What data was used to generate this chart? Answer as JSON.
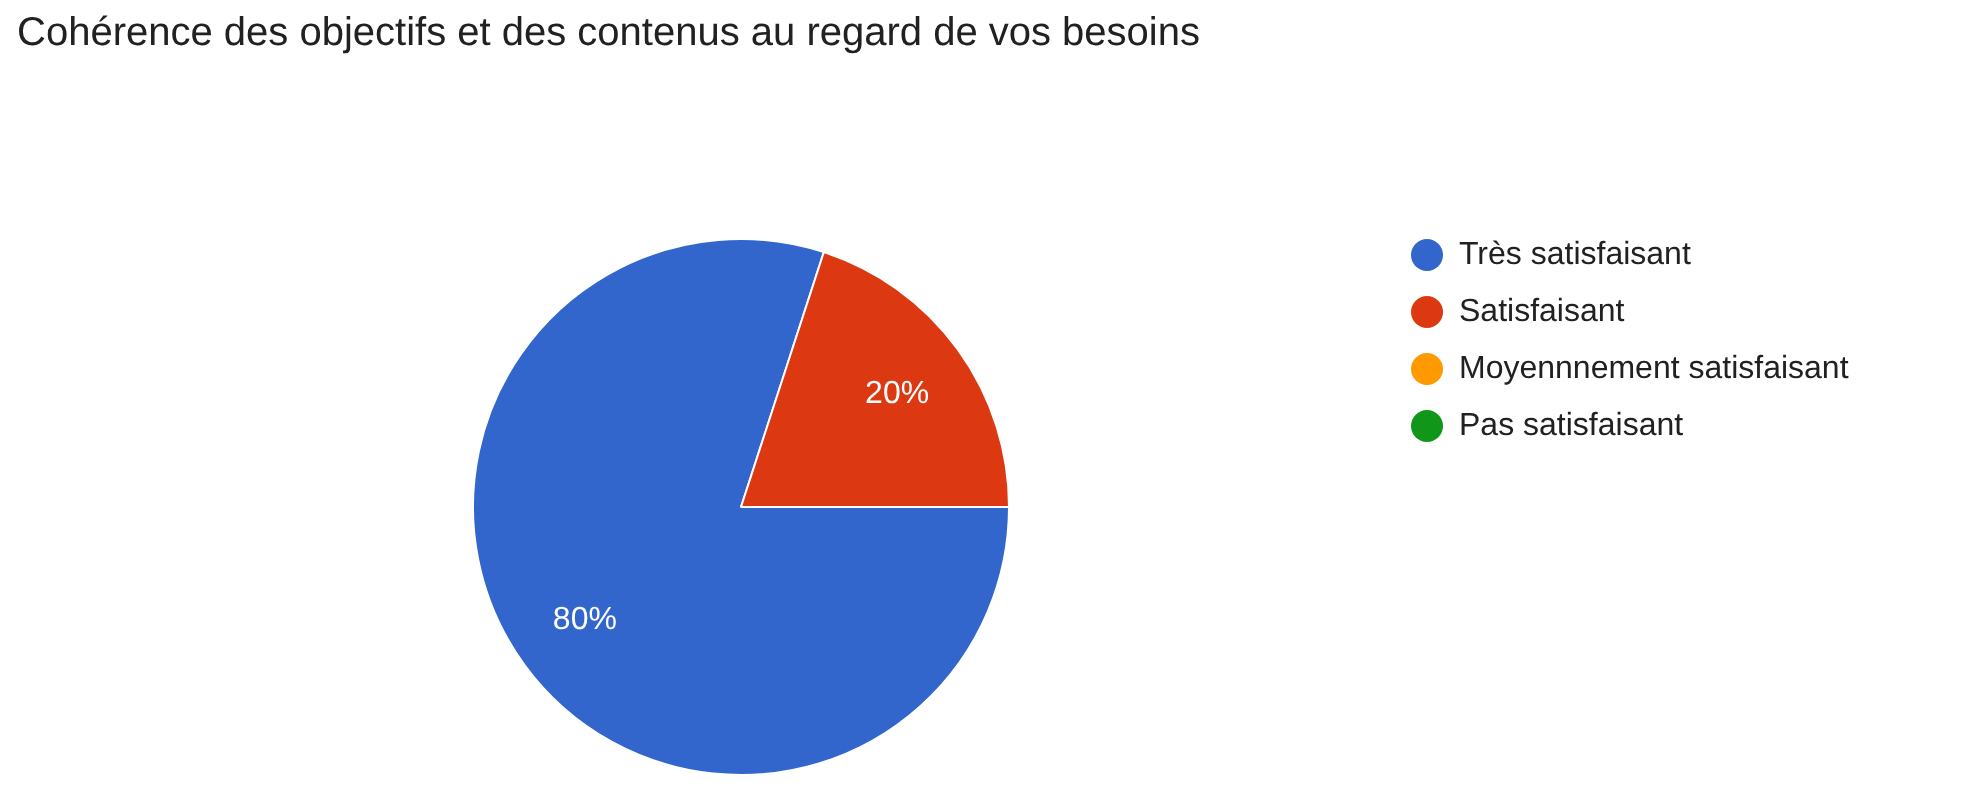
{
  "chart_data": {
    "type": "pie",
    "title": "Cohérence des objectifs et des contenus au regard de vos besoins",
    "categories": [
      "Très satisfaisant",
      "Satisfaisant",
      "Moyennnement satisfaisant",
      "Pas satisfaisant"
    ],
    "values": [
      80,
      20,
      0,
      0
    ],
    "colors": [
      "#3366cc",
      "#dc3912",
      "#ff9900",
      "#109618"
    ],
    "value_labels": [
      "80%",
      "20%",
      null,
      null
    ],
    "legend": "right"
  }
}
